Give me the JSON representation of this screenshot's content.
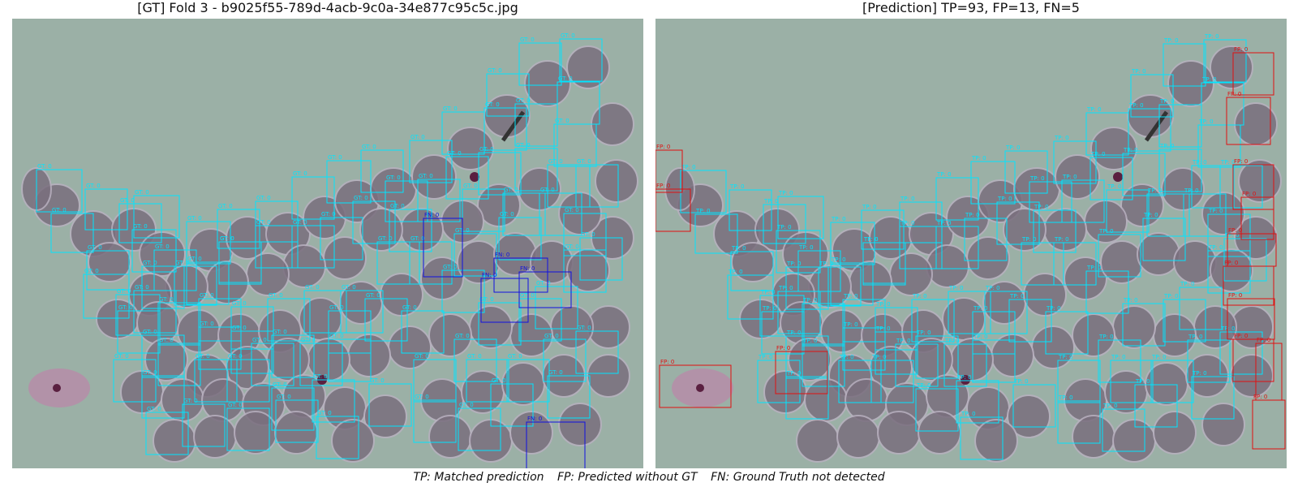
{
  "titles": {
    "left": "[GT] Fold 3 - b9025f55-789d-4acb-9c0a-34e877c95c5c.jpg",
    "right": "[Prediction] TP=93, FP=13, FN=5"
  },
  "legend": {
    "tp": "TP: Matched prediction",
    "fp": "FP: Predicted without GT",
    "fn": "FN: Ground Truth not detected"
  },
  "box_labels": {
    "gt": "GT: 0",
    "tp": "TP: 0",
    "fp": "FP: 0",
    "fn": "FN: 0"
  },
  "colors": {
    "gt": "#00e5ff",
    "tp": "#00e5ff",
    "fp": "#e01010",
    "fn": "#1010e0",
    "background": "#9bb0a6",
    "cell": "#7a6f7e",
    "parasite": "#5a2040"
  }
}
